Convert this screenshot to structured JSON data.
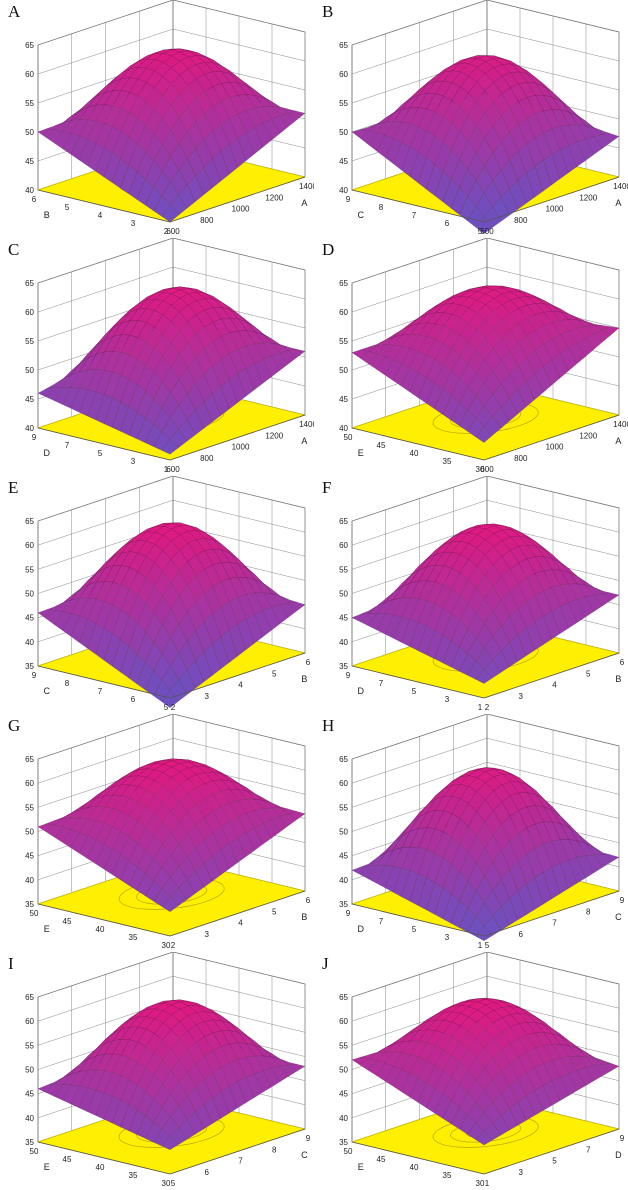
{
  "figure": {
    "colors": {
      "floor": "#ffef00",
      "floor_edge": "#c9bb00",
      "contour": "#b8a800",
      "high": "#e8157c",
      "low": "#6f4fc0",
      "frame": "#7a7a7a",
      "mesh": "#3a1a30"
    }
  },
  "chart_data": [
    {
      "type": "surface",
      "label": "A",
      "z_ticks": [
        "65",
        "60",
        "55",
        "50",
        "45",
        "40"
      ],
      "zlim": [
        40,
        65
      ],
      "x_axis": {
        "label": "A",
        "ticks": [
          "600",
          "800",
          "1000",
          "1200",
          "1400"
        ]
      },
      "y_axis": {
        "label": "B",
        "ticks": [
          "2",
          "3",
          "4",
          "5",
          "6"
        ]
      },
      "z_corners": {
        "x_low_y_low": 40.0,
        "x_high_y_low": 51.0,
        "x_low_y_high": 50.0,
        "x_high_y_high": 51.0
      },
      "z_center": 62.0
    },
    {
      "type": "surface",
      "label": "B",
      "z_ticks": [
        "65",
        "60",
        "55",
        "50",
        "45",
        "40"
      ],
      "zlim": [
        40,
        65
      ],
      "x_axis": {
        "label": "A",
        "ticks": [
          "600",
          "800",
          "1000",
          "1200",
          "1400"
        ]
      },
      "y_axis": {
        "label": "C",
        "ticks": [
          "5",
          "6",
          "7",
          "8",
          "9"
        ]
      },
      "z_corners": {
        "x_low_y_low": 38.0,
        "x_high_y_low": 47.0,
        "x_low_y_high": 50.0,
        "x_high_y_high": 49.0
      },
      "z_center": 61.0
    },
    {
      "type": "surface",
      "label": "C",
      "z_ticks": [
        "65",
        "60",
        "55",
        "50",
        "45",
        "40"
      ],
      "zlim": [
        40,
        65
      ],
      "x_axis": {
        "label": "A",
        "ticks": [
          "600",
          "800",
          "1000",
          "1200",
          "1400"
        ]
      },
      "y_axis": {
        "label": "D",
        "ticks": [
          "1",
          "3",
          "5",
          "7",
          "9"
        ]
      },
      "z_corners": {
        "x_low_y_low": 41.0,
        "x_high_y_low": 51.0,
        "x_low_y_high": 46.0,
        "x_high_y_high": 51.0
      },
      "z_center": 62.0
    },
    {
      "type": "surface",
      "label": "D",
      "z_ticks": [
        "65",
        "60",
        "55",
        "50",
        "45",
        "40"
      ],
      "zlim": [
        40,
        65
      ],
      "x_axis": {
        "label": "A",
        "ticks": [
          "600",
          "800",
          "1000",
          "1200",
          "1400"
        ]
      },
      "y_axis": {
        "label": "E",
        "ticks": [
          "30",
          "35",
          "40",
          "45",
          "50"
        ]
      },
      "z_corners": {
        "x_low_y_low": 43.0,
        "x_high_y_low": 55.0,
        "x_low_y_high": 53.0,
        "x_high_y_high": 53.0
      },
      "z_center": 62.0
    },
    {
      "type": "surface",
      "label": "E",
      "z_ticks": [
        "65",
        "60",
        "55",
        "50",
        "45",
        "40",
        "35"
      ],
      "zlim": [
        35,
        65
      ],
      "x_axis": {
        "label": "B",
        "ticks": [
          "2",
          "3",
          "4",
          "5",
          "6"
        ]
      },
      "y_axis": {
        "label": "C",
        "ticks": [
          "5",
          "6",
          "7",
          "8",
          "9"
        ]
      },
      "z_corners": {
        "x_low_y_low": 33.0,
        "x_high_y_low": 45.0,
        "x_low_y_high": 46.0,
        "x_high_y_high": 47.0
      },
      "z_center": 62.0
    },
    {
      "type": "surface",
      "label": "F",
      "z_ticks": [
        "65",
        "60",
        "55",
        "50",
        "45",
        "40",
        "35"
      ],
      "zlim": [
        35,
        65
      ],
      "x_axis": {
        "label": "B",
        "ticks": [
          "2",
          "3",
          "4",
          "5",
          "6"
        ]
      },
      "y_axis": {
        "label": "D",
        "ticks": [
          "1",
          "3",
          "5",
          "7",
          "9"
        ]
      },
      "z_corners": {
        "x_low_y_low": 38.0,
        "x_high_y_low": 47.0,
        "x_low_y_high": 45.0,
        "x_high_y_high": 47.0
      },
      "z_center": 62.0
    },
    {
      "type": "surface",
      "label": "G",
      "z_ticks": [
        "65",
        "60",
        "55",
        "50",
        "45",
        "40",
        "35"
      ],
      "zlim": [
        35,
        65
      ],
      "x_axis": {
        "label": "B",
        "ticks": [
          "2",
          "3",
          "4",
          "5",
          "6"
        ]
      },
      "y_axis": {
        "label": "E",
        "ticks": [
          "30",
          "35",
          "40",
          "45",
          "50"
        ]
      },
      "z_corners": {
        "x_low_y_low": 40.0,
        "x_high_y_low": 51.0,
        "x_low_y_high": 51.0,
        "x_high_y_high": 52.0
      },
      "z_center": 62.0
    },
    {
      "type": "surface",
      "label": "H",
      "z_ticks": [
        "65",
        "60",
        "55",
        "50",
        "45",
        "40",
        "35"
      ],
      "zlim": [
        35,
        65
      ],
      "x_axis": {
        "label": "C",
        "ticks": [
          "5",
          "6",
          "7",
          "8",
          "9"
        ]
      },
      "y_axis": {
        "label": "D",
        "ticks": [
          "1",
          "3",
          "5",
          "7",
          "9"
        ]
      },
      "z_corners": {
        "x_low_y_low": 34.0,
        "x_high_y_low": 42.0,
        "x_low_y_high": 42.0,
        "x_high_y_high": 43.0
      },
      "z_center": 61.0
    },
    {
      "type": "surface",
      "label": "I",
      "z_ticks": [
        "65",
        "60",
        "55",
        "50",
        "45",
        "40",
        "35"
      ],
      "zlim": [
        35,
        65
      ],
      "x_axis": {
        "label": "C",
        "ticks": [
          "5",
          "6",
          "7",
          "8",
          "9"
        ]
      },
      "y_axis": {
        "label": "E",
        "ticks": [
          "30",
          "35",
          "40",
          "45",
          "50"
        ]
      },
      "z_corners": {
        "x_low_y_low": 40.0,
        "x_high_y_low": 48.0,
        "x_low_y_high": 46.0,
        "x_high_y_high": 48.0
      },
      "z_center": 62.0
    },
    {
      "type": "surface",
      "label": "J",
      "z_ticks": [
        "65",
        "60",
        "55",
        "50",
        "45",
        "40",
        "35"
      ],
      "zlim": [
        35,
        65
      ],
      "x_axis": {
        "label": "D",
        "ticks": [
          "1",
          "3",
          "5",
          "7",
          "9"
        ]
      },
      "y_axis": {
        "label": "E",
        "ticks": [
          "30",
          "35",
          "40",
          "45",
          "50"
        ]
      },
      "z_corners": {
        "x_low_y_low": 41.0,
        "x_high_y_low": 48.0,
        "x_low_y_high": 52.0,
        "x_high_y_high": 51.0
      },
      "z_center": 62.0
    }
  ]
}
